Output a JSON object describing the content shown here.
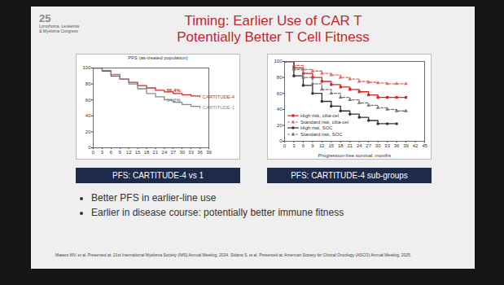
{
  "slide": {
    "logo": [
      "25",
      "Lymphoma, Leukemia",
      "& Myeloma Congress"
    ],
    "title": [
      "Timing: Earlier Use of CAR T",
      "Potentially Better T Cell Fitness"
    ],
    "bullets": [
      "Better PFS in earlier-line use",
      "Earlier in disease course: potentially better immune fitness"
    ],
    "footnote": "Mateos MV, et al. Presented at: 21st International Myeloma Society (IMS) Annual Meeting, 2024. Sidana S, et al. Presented at: American Society for Clinical Oncology (ASCO) Annual Meeting, 2025."
  },
  "chart_data": [
    {
      "type": "line",
      "title": "PFS (as-treated population)",
      "caption": "PFS: CARTITUDE-4 vs 1",
      "x": [
        0,
        3,
        6,
        9,
        12,
        15,
        18,
        21,
        24,
        27,
        30,
        33,
        36
      ],
      "series": [
        {
          "name": "CARTITUDE-4",
          "color": "#d62728",
          "line_style": "solid",
          "values": [
            100,
            96,
            90,
            86,
            82,
            78,
            75,
            72,
            70,
            68,
            66.4,
            65,
            64
          ]
        },
        {
          "name": "CARTITUDE-1",
          "color": "#888888",
          "line_style": "solid",
          "values": [
            100,
            97,
            92,
            86,
            80,
            74,
            68,
            64,
            60,
            57,
            54.2,
            52,
            50
          ]
        }
      ],
      "annotations": [
        {
          "text": "66.4%",
          "x": 30,
          "y": 66.4
        },
        {
          "text": "54.2%",
          "x": 30,
          "y": 54.2
        }
      ],
      "xlim": [
        0,
        39
      ],
      "xticks": [
        0,
        3,
        6,
        9,
        12,
        15,
        18,
        21,
        24,
        27,
        30,
        33,
        36,
        39
      ],
      "ylim": [
        0,
        100
      ],
      "yticks": [
        0,
        20,
        40,
        60,
        80,
        100
      ]
    },
    {
      "type": "line",
      "caption": "PFS: CARTITUDE-4 sub-groups",
      "x_label": "Progression-free survival, months",
      "x": [
        0,
        3,
        6,
        9,
        12,
        15,
        18,
        21,
        24,
        27,
        30,
        33,
        36,
        39
      ],
      "series": [
        {
          "name": "High risk, cilta-cel",
          "color": "#e02020",
          "line_style": "solid",
          "marker": "square",
          "values": [
            100,
            92,
            85,
            80,
            75,
            71,
            68,
            65,
            62,
            58,
            55,
            55,
            55,
            55
          ]
        },
        {
          "name": "Standard risk, cilta-cel",
          "color": "#e06a6a",
          "line_style": "dashed",
          "marker": "triangle",
          "values": [
            100,
            95,
            90,
            88,
            85,
            83,
            80,
            78,
            75,
            74,
            73,
            72,
            72,
            72
          ]
        },
        {
          "name": "High risk, SOC",
          "color": "#333333",
          "line_style": "solid",
          "marker": "circle",
          "values": [
            100,
            82,
            70,
            60,
            50,
            44,
            38,
            34,
            30,
            26,
            22,
            22,
            22,
            null
          ]
        },
        {
          "name": "Standard risk, SOC",
          "color": "#777777",
          "line_style": "dashed",
          "marker": "triangle",
          "values": [
            100,
            90,
            80,
            72,
            65,
            60,
            55,
            52,
            48,
            45,
            42,
            40,
            38,
            38
          ]
        }
      ],
      "legend": "lower left",
      "xlim": [
        0,
        45
      ],
      "xticks": [
        0,
        3,
        6,
        9,
        12,
        15,
        18,
        21,
        24,
        27,
        30,
        33,
        36,
        39,
        42,
        45
      ],
      "ylim": [
        0,
        100
      ],
      "yticks": [
        0,
        20,
        40,
        60,
        80,
        100
      ]
    }
  ]
}
